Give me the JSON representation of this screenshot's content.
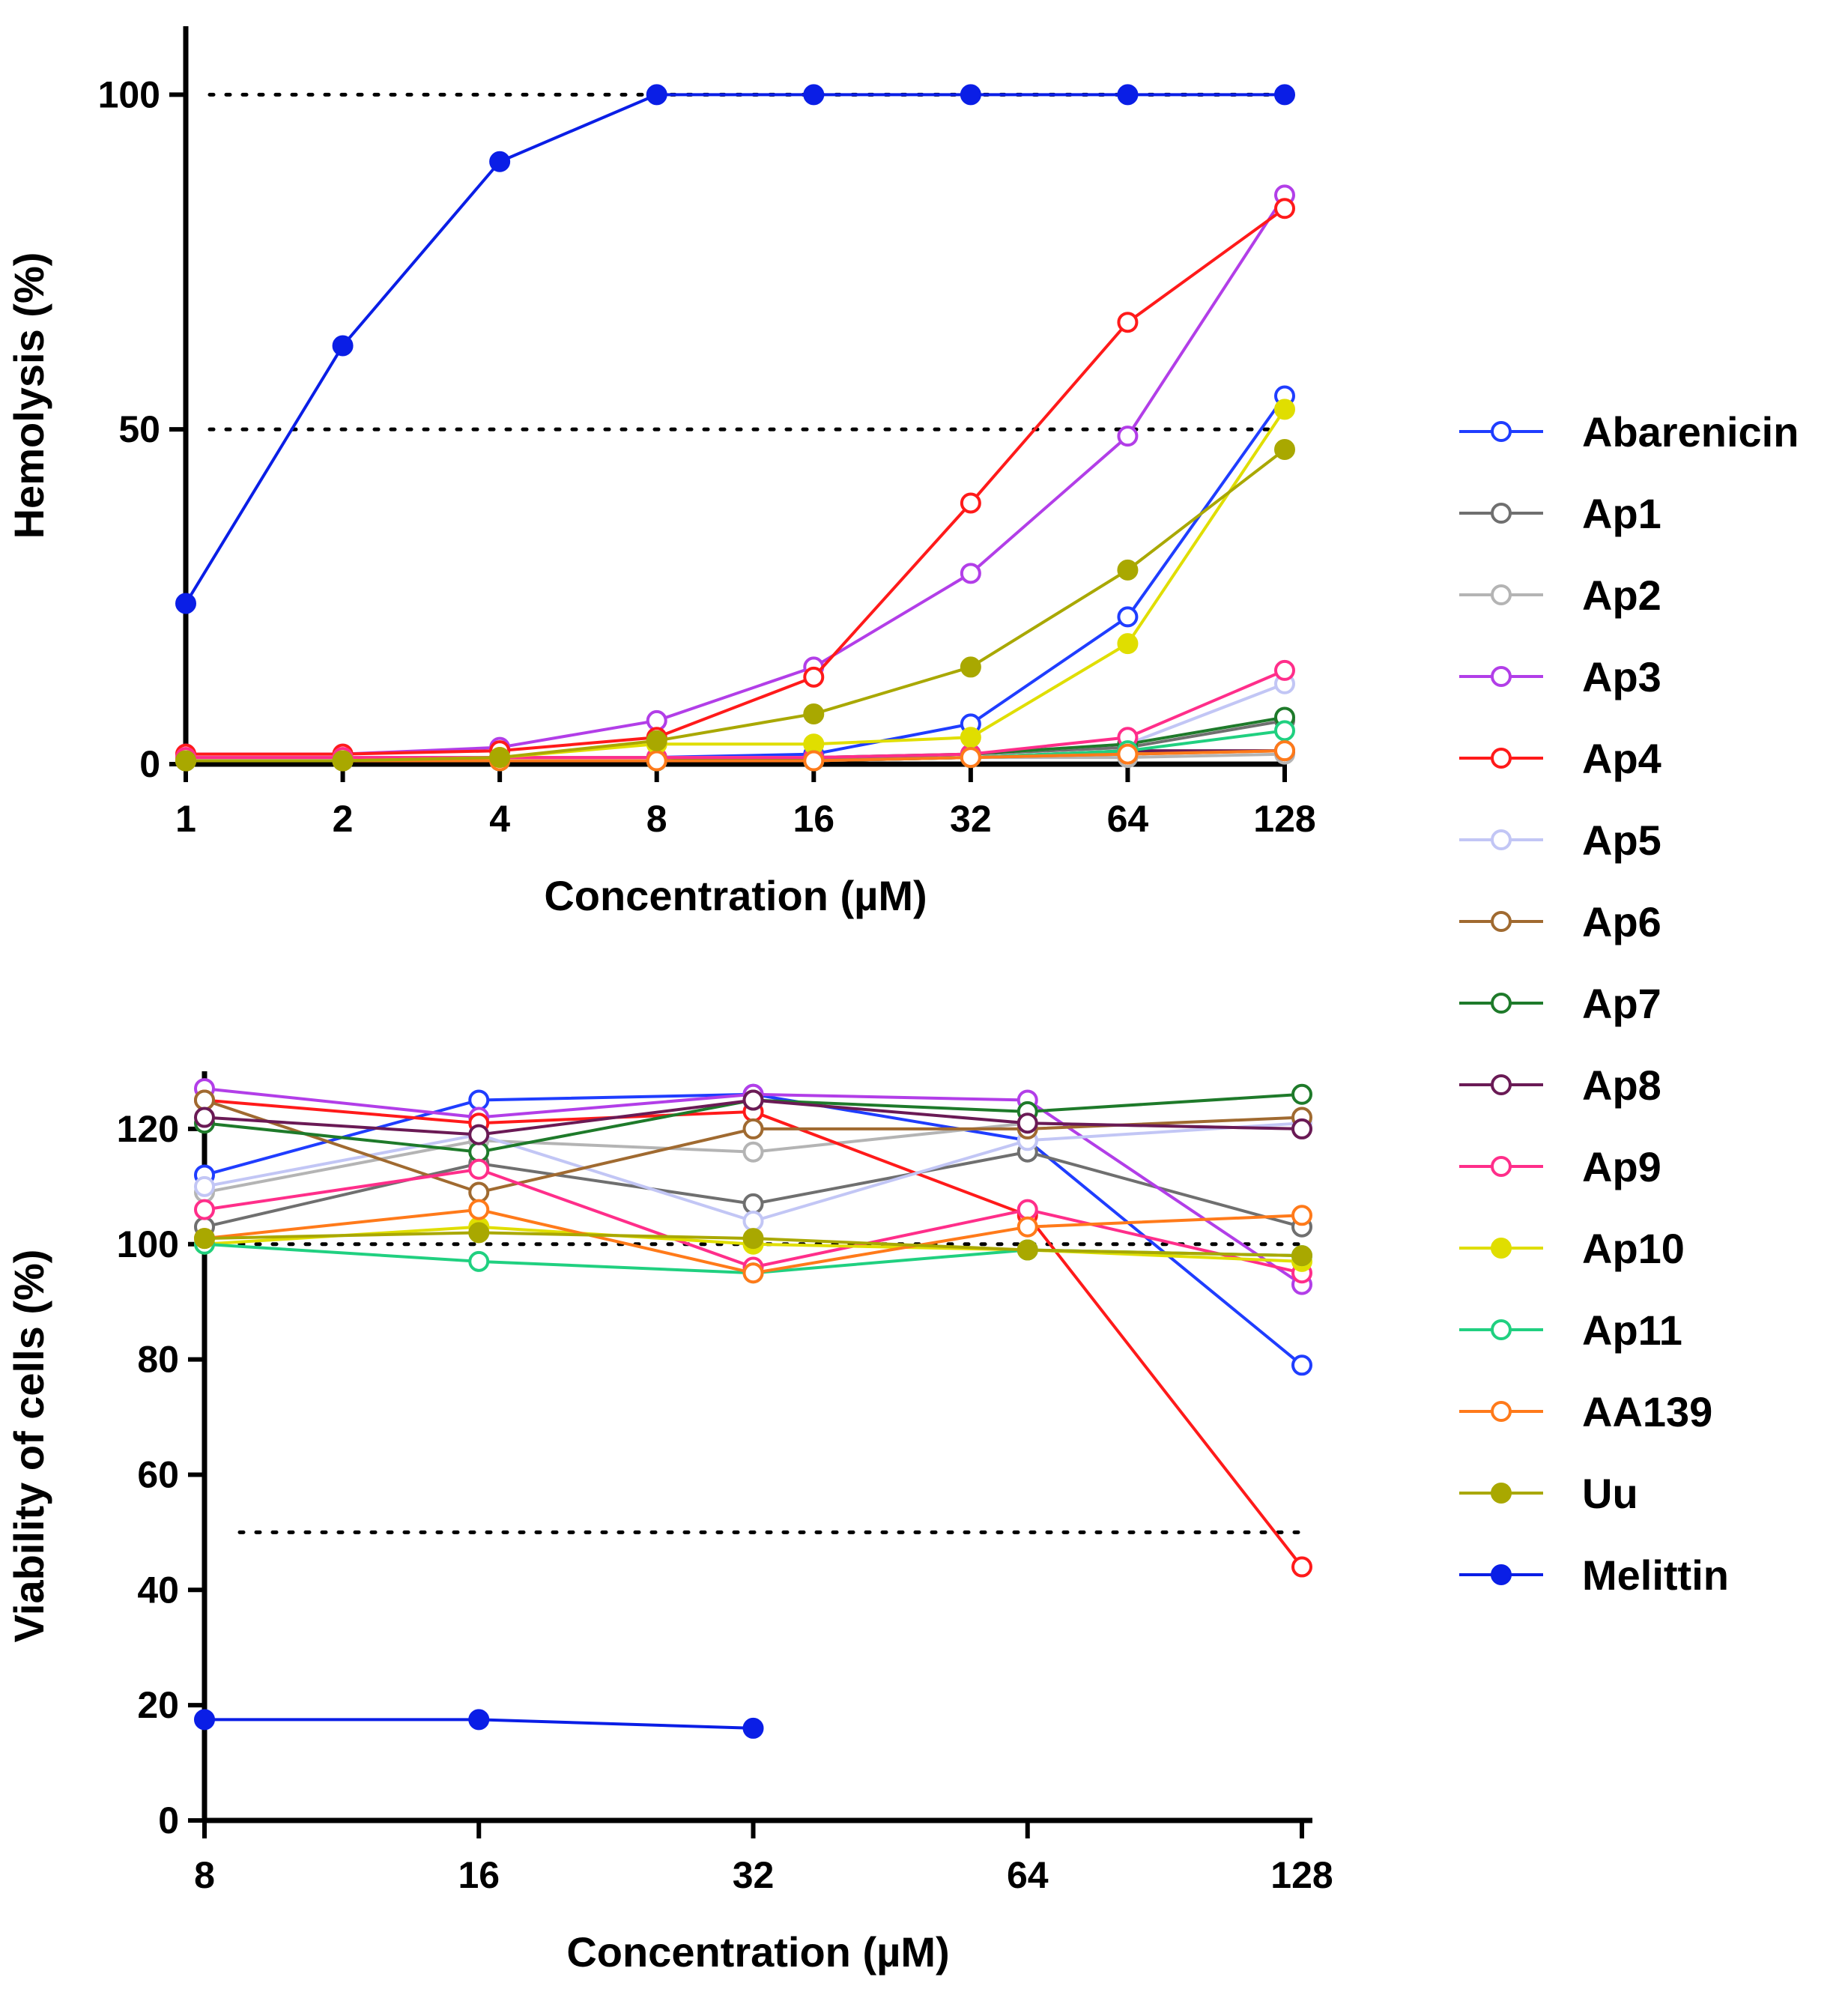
{
  "chart_data": [
    {
      "type": "line",
      "id": "hemolysis",
      "title": "",
      "xlabel": "Concentration (µM)",
      "ylabel": "Hemolysis (%)",
      "x_scale": "log2",
      "x": [
        1,
        2,
        4,
        8,
        16,
        32,
        64,
        128
      ],
      "x_tick_labels": [
        "1",
        "2",
        "4",
        "8",
        "16",
        "32",
        "64",
        "128"
      ],
      "y_ticks": [
        0,
        50,
        100
      ],
      "ylim": [
        0,
        110
      ],
      "reference_lines": [
        50,
        100
      ],
      "series": [
        {
          "name": "Abarenicin",
          "values": [
            1,
            1,
            1,
            1,
            1.5,
            6,
            22,
            55
          ]
        },
        {
          "name": "Ap1",
          "values": [
            0.5,
            0.5,
            0.5,
            0.5,
            0.8,
            1.5,
            2.5,
            6.5
          ]
        },
        {
          "name": "Ap2",
          "values": [
            0.5,
            0.5,
            0.5,
            0.5,
            0.5,
            1,
            1,
            1.5
          ]
        },
        {
          "name": "Ap3",
          "values": [
            1.5,
            1.5,
            2.5,
            6.5,
            14.5,
            28.5,
            49,
            85
          ]
        },
        {
          "name": "Ap4",
          "values": [
            1.5,
            1.5,
            2,
            4,
            13,
            39,
            66,
            83
          ]
        },
        {
          "name": "Ap5",
          "values": [
            1,
            1,
            1,
            1,
            1,
            1.5,
            3,
            12
          ]
        },
        {
          "name": "Ap6",
          "values": [
            0.5,
            0.5,
            0.5,
            0.5,
            0.5,
            1,
            1.5,
            2
          ]
        },
        {
          "name": "Ap7",
          "values": [
            0.5,
            0.5,
            0.5,
            0.5,
            1,
            1.5,
            3,
            7
          ]
        },
        {
          "name": "Ap8",
          "values": [
            0.5,
            0.5,
            0.5,
            0.5,
            0.5,
            1,
            2,
            2
          ]
        },
        {
          "name": "Ap9",
          "values": [
            1,
            1,
            1,
            1,
            1,
            1.5,
            4,
            14
          ]
        },
        {
          "name": "Ap10",
          "values": [
            0.5,
            0.5,
            1,
            3,
            3,
            4,
            18,
            53
          ]
        },
        {
          "name": "Ap11",
          "values": [
            0.5,
            0.5,
            0.5,
            0.5,
            0.5,
            1,
            2,
            5
          ]
        },
        {
          "name": "AA139",
          "values": [
            0.5,
            0.5,
            0.5,
            0.5,
            0.5,
            1,
            1.5,
            2
          ]
        },
        {
          "name": "Uu",
          "values": [
            0.5,
            0.5,
            1,
            3.5,
            7.5,
            14.5,
            29,
            47
          ]
        },
        {
          "name": "Melittin",
          "values": [
            24,
            62.5,
            90,
            100,
            100,
            100,
            100,
            100
          ]
        }
      ]
    },
    {
      "type": "line",
      "id": "viability",
      "title": "",
      "xlabel": "Concentration (µM)",
      "ylabel": "Viability of cells (%)",
      "x_scale": "log2",
      "x": [
        8,
        16,
        32,
        64,
        128
      ],
      "x_tick_labels": [
        "8",
        "16",
        "32",
        "64",
        "128"
      ],
      "y_ticks": [
        0,
        20,
        40,
        60,
        80,
        100,
        120
      ],
      "ylim": [
        0,
        130
      ],
      "reference_lines": [
        50,
        100
      ],
      "series": [
        {
          "name": "Abarenicin",
          "values": [
            112,
            125,
            126,
            118,
            79
          ]
        },
        {
          "name": "Ap1",
          "values": [
            103,
            114,
            107,
            116,
            103
          ]
        },
        {
          "name": "Ap2",
          "values": [
            109,
            118,
            116,
            121,
            120
          ]
        },
        {
          "name": "Ap3",
          "values": [
            127,
            122,
            126,
            125,
            93
          ]
        },
        {
          "name": "Ap4",
          "values": [
            125,
            121,
            123,
            105,
            44
          ]
        },
        {
          "name": "Ap5",
          "values": [
            110,
            119,
            104,
            118,
            121
          ]
        },
        {
          "name": "Ap6",
          "values": [
            125,
            109,
            120,
            120,
            122
          ]
        },
        {
          "name": "Ap7",
          "values": [
            121,
            116,
            125,
            123,
            126
          ]
        },
        {
          "name": "Ap8",
          "values": [
            122,
            119,
            125,
            121,
            120
          ]
        },
        {
          "name": "Ap9",
          "values": [
            106,
            113,
            96,
            106,
            95
          ]
        },
        {
          "name": "Ap10",
          "values": [
            100,
            103,
            100,
            99,
            97
          ]
        },
        {
          "name": "Ap11",
          "values": [
            100,
            97,
            95,
            99,
            98
          ]
        },
        {
          "name": "AA139",
          "values": [
            101,
            106,
            95,
            103,
            105
          ]
        },
        {
          "name": "Uu",
          "values": [
            101,
            102,
            101,
            99,
            98
          ]
        },
        {
          "name": "Melittin",
          "values": [
            17.5,
            17.5,
            16,
            null,
            null
          ]
        }
      ]
    }
  ],
  "legend": [
    {
      "name": "Abarenicin",
      "color": "#1f3dff",
      "filled": false
    },
    {
      "name": "Ap1",
      "color": "#6f6f6f",
      "filled": false
    },
    {
      "name": "Ap2",
      "color": "#b4b4b4",
      "filled": false
    },
    {
      "name": "Ap3",
      "color": "#b23ee8",
      "filled": false
    },
    {
      "name": "Ap4",
      "color": "#ff1a1a",
      "filled": false
    },
    {
      "name": "Ap5",
      "color": "#c2c6f5",
      "filled": false
    },
    {
      "name": "Ap6",
      "color": "#a06a30",
      "filled": false
    },
    {
      "name": "Ap7",
      "color": "#1e7a2a",
      "filled": false
    },
    {
      "name": "Ap8",
      "color": "#6a1a55",
      "filled": false
    },
    {
      "name": "Ap9",
      "color": "#ff2e8a",
      "filled": false
    },
    {
      "name": "Ap10",
      "color": "#e0de00",
      "filled": true
    },
    {
      "name": "Ap11",
      "color": "#20d080",
      "filled": false
    },
    {
      "name": "AA139",
      "color": "#ff7a1a",
      "filled": false
    },
    {
      "name": "Uu",
      "color": "#a9a800",
      "filled": true
    },
    {
      "name": "Melittin",
      "color": "#0a1ee6",
      "filled": true
    }
  ]
}
